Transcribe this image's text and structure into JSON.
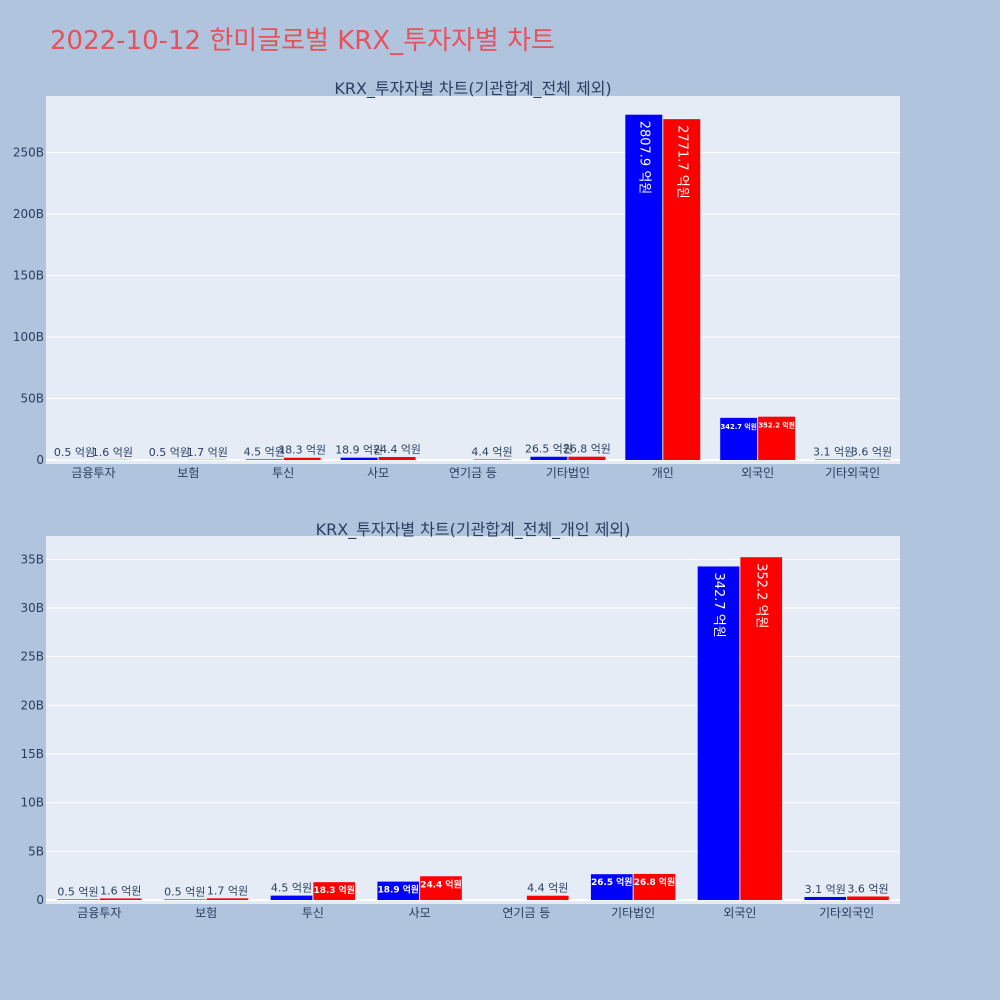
{
  "title": "2022-10-12 한미글로벌 KRX_투자자별 차트",
  "colors": {
    "buy": "#0000ff",
    "sell": "#ff0000",
    "plot_bg": "#e5ecf6",
    "page_bg": "#b0c4de",
    "title": "#e8505b"
  },
  "chart_data": [
    {
      "type": "bar",
      "title": "KRX_투자자별 차트(기관합계_전체 제외)",
      "categories": [
        "금융투자",
        "보험",
        "투신",
        "사모",
        "연기금 등",
        "기타법인",
        "개인",
        "외국인",
        "기타외국인"
      ],
      "series": [
        {
          "values": [
            0.05,
            0.05,
            0.45,
            1.89,
            0,
            2.65,
            280.79,
            34.27,
            0.31
          ],
          "labels": [
            "0.5 억원",
            "0.5 억원",
            "4.5 억원",
            "18.9 억원",
            "",
            "26.5 억원",
            "2807.9 억원",
            "342.7 억원",
            "3.1 억원"
          ]
        },
        {
          "values": [
            0.16,
            0.17,
            1.83,
            2.44,
            0.44,
            2.68,
            277.17,
            35.22,
            0.36
          ],
          "labels": [
            "1.6 억원",
            "1.7 억원",
            "18.3 억원",
            "24.4 억원",
            "4.4 억원",
            "26.8 억원",
            "2771.7 억원",
            "352.2 억원",
            "3.6 억원"
          ]
        }
      ],
      "yunit": "B",
      "ylim": [
        0,
        296
      ],
      "yticks": [
        0,
        50,
        100,
        150,
        200,
        250
      ],
      "grid": true,
      "legend": "none"
    },
    {
      "type": "bar",
      "title": "KRX_투자자별 차트(기관합계_전체_개인 제외)",
      "categories": [
        "금융투자",
        "보험",
        "투신",
        "사모",
        "연기금 등",
        "기타법인",
        "외국인",
        "기타외국인"
      ],
      "series": [
        {
          "values": [
            0.05,
            0.05,
            0.45,
            1.89,
            0,
            2.65,
            34.27,
            0.31
          ],
          "labels": [
            "0.5 억원",
            "0.5 억원",
            "4.5 억원",
            "18.9 억원",
            "",
            "26.5 억원",
            "342.7 억원",
            "3.1 억원"
          ]
        },
        {
          "values": [
            0.16,
            0.17,
            1.83,
            2.44,
            0.44,
            2.68,
            35.22,
            0.36
          ],
          "labels": [
            "1.6 억원",
            "1.7 억원",
            "18.3 억원",
            "24.4 억원",
            "4.4 억원",
            "26.8 억원",
            "352.2 억원",
            "3.6 억원"
          ]
        }
      ],
      "yunit": "B",
      "ylim": [
        0,
        37.4
      ],
      "yticks": [
        0,
        5,
        10,
        15,
        20,
        25,
        30,
        35
      ],
      "grid": true,
      "legend": "none"
    }
  ]
}
